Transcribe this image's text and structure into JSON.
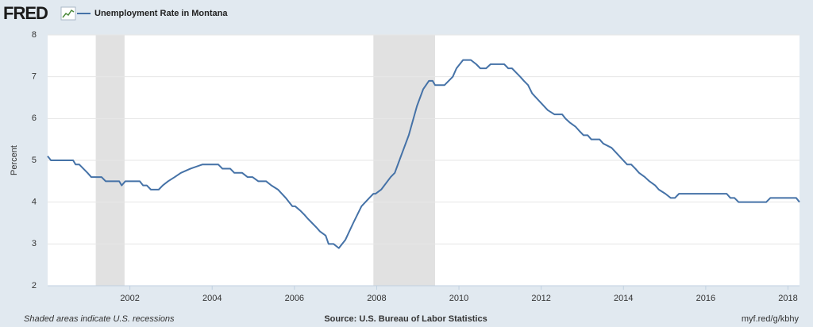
{
  "chart_data": {
    "type": "line",
    "logo": "FRED",
    "ylabel": "Percent",
    "note": "Shaded areas indicate U.S. recessions",
    "source": "Source: U.S. Bureau of Labor Statistics",
    "link": "myf.red/g/kbhy",
    "x": [
      2000.0,
      2000.08,
      2000.62,
      2000.68,
      2000.77,
      2000.87,
      2000.97,
      2001.06,
      2001.31,
      2001.41,
      2001.74,
      2001.8,
      2001.89,
      2002.24,
      2002.32,
      2002.41,
      2002.51,
      2002.7,
      2002.8,
      2002.93,
      2003.09,
      2003.24,
      2003.47,
      2003.76,
      2004.15,
      2004.25,
      2004.44,
      2004.54,
      2004.73,
      2004.86,
      2004.98,
      2005.12,
      2005.31,
      2005.44,
      2005.6,
      2005.79,
      2005.95,
      2006.02,
      2006.14,
      2006.24,
      2006.33,
      2006.43,
      2006.53,
      2006.62,
      2006.76,
      2006.83,
      2006.95,
      2007.08,
      2007.24,
      2007.43,
      2007.63,
      2007.82,
      2007.92,
      2007.97,
      2008.11,
      2008.34,
      2008.44,
      2008.59,
      2008.78,
      2008.98,
      2009.13,
      2009.27,
      2009.36,
      2009.42,
      2009.65,
      2009.75,
      2009.85,
      2009.94,
      2010.1,
      2010.29,
      2010.42,
      2010.52,
      2010.66,
      2010.77,
      2011.1,
      2011.2,
      2011.29,
      2011.39,
      2011.49,
      2011.58,
      2011.68,
      2011.78,
      2011.97,
      2012.16,
      2012.32,
      2012.51,
      2012.59,
      2012.7,
      2012.84,
      2012.93,
      2013.03,
      2013.13,
      2013.22,
      2013.42,
      2013.51,
      2013.71,
      2013.9,
      2014.09,
      2014.19,
      2014.29,
      2014.38,
      2014.52,
      2014.63,
      2014.77,
      2014.86,
      2015.02,
      2015.15,
      2015.25,
      2015.35,
      2016.51,
      2016.6,
      2016.7,
      2016.8,
      2017.47,
      2017.57,
      2018.2,
      2018.28
    ],
    "series": [
      {
        "name": "Unemployment Rate in Montana",
        "color": "#4572a7",
        "values": [
          5.1,
          5.0,
          5.0,
          4.9,
          4.9,
          4.8,
          4.7,
          4.6,
          4.6,
          4.5,
          4.5,
          4.4,
          4.5,
          4.5,
          4.4,
          4.4,
          4.3,
          4.3,
          4.4,
          4.5,
          4.6,
          4.7,
          4.8,
          4.9,
          4.9,
          4.8,
          4.8,
          4.7,
          4.7,
          4.6,
          4.6,
          4.5,
          4.5,
          4.4,
          4.3,
          4.1,
          3.9,
          3.9,
          3.8,
          3.7,
          3.6,
          3.5,
          3.4,
          3.3,
          3.2,
          3.0,
          3.0,
          2.9,
          3.1,
          3.5,
          3.9,
          4.1,
          4.2,
          4.2,
          4.3,
          4.6,
          4.7,
          5.1,
          5.6,
          6.3,
          6.7,
          6.9,
          6.9,
          6.8,
          6.8,
          6.9,
          7.0,
          7.2,
          7.4,
          7.4,
          7.3,
          7.2,
          7.2,
          7.3,
          7.3,
          7.2,
          7.2,
          7.1,
          7.0,
          6.9,
          6.8,
          6.6,
          6.4,
          6.2,
          6.1,
          6.1,
          6.0,
          5.9,
          5.8,
          5.7,
          5.6,
          5.6,
          5.5,
          5.5,
          5.4,
          5.3,
          5.1,
          4.9,
          4.9,
          4.8,
          4.7,
          4.6,
          4.5,
          4.4,
          4.3,
          4.2,
          4.1,
          4.1,
          4.2,
          4.2,
          4.1,
          4.1,
          4.0,
          4.0,
          4.1,
          4.1,
          4.0
        ]
      }
    ],
    "recessions": [
      [
        2001.17,
        2001.87
      ],
      [
        2007.92,
        2009.42
      ]
    ],
    "xlim": [
      2000,
      2018.28
    ],
    "xticks": [
      2002,
      2004,
      2006,
      2008,
      2010,
      2012,
      2014,
      2016,
      2018
    ],
    "ylim": [
      2,
      8
    ],
    "yticks": [
      2,
      3,
      4,
      5,
      6,
      7,
      8
    ],
    "grid": true
  }
}
